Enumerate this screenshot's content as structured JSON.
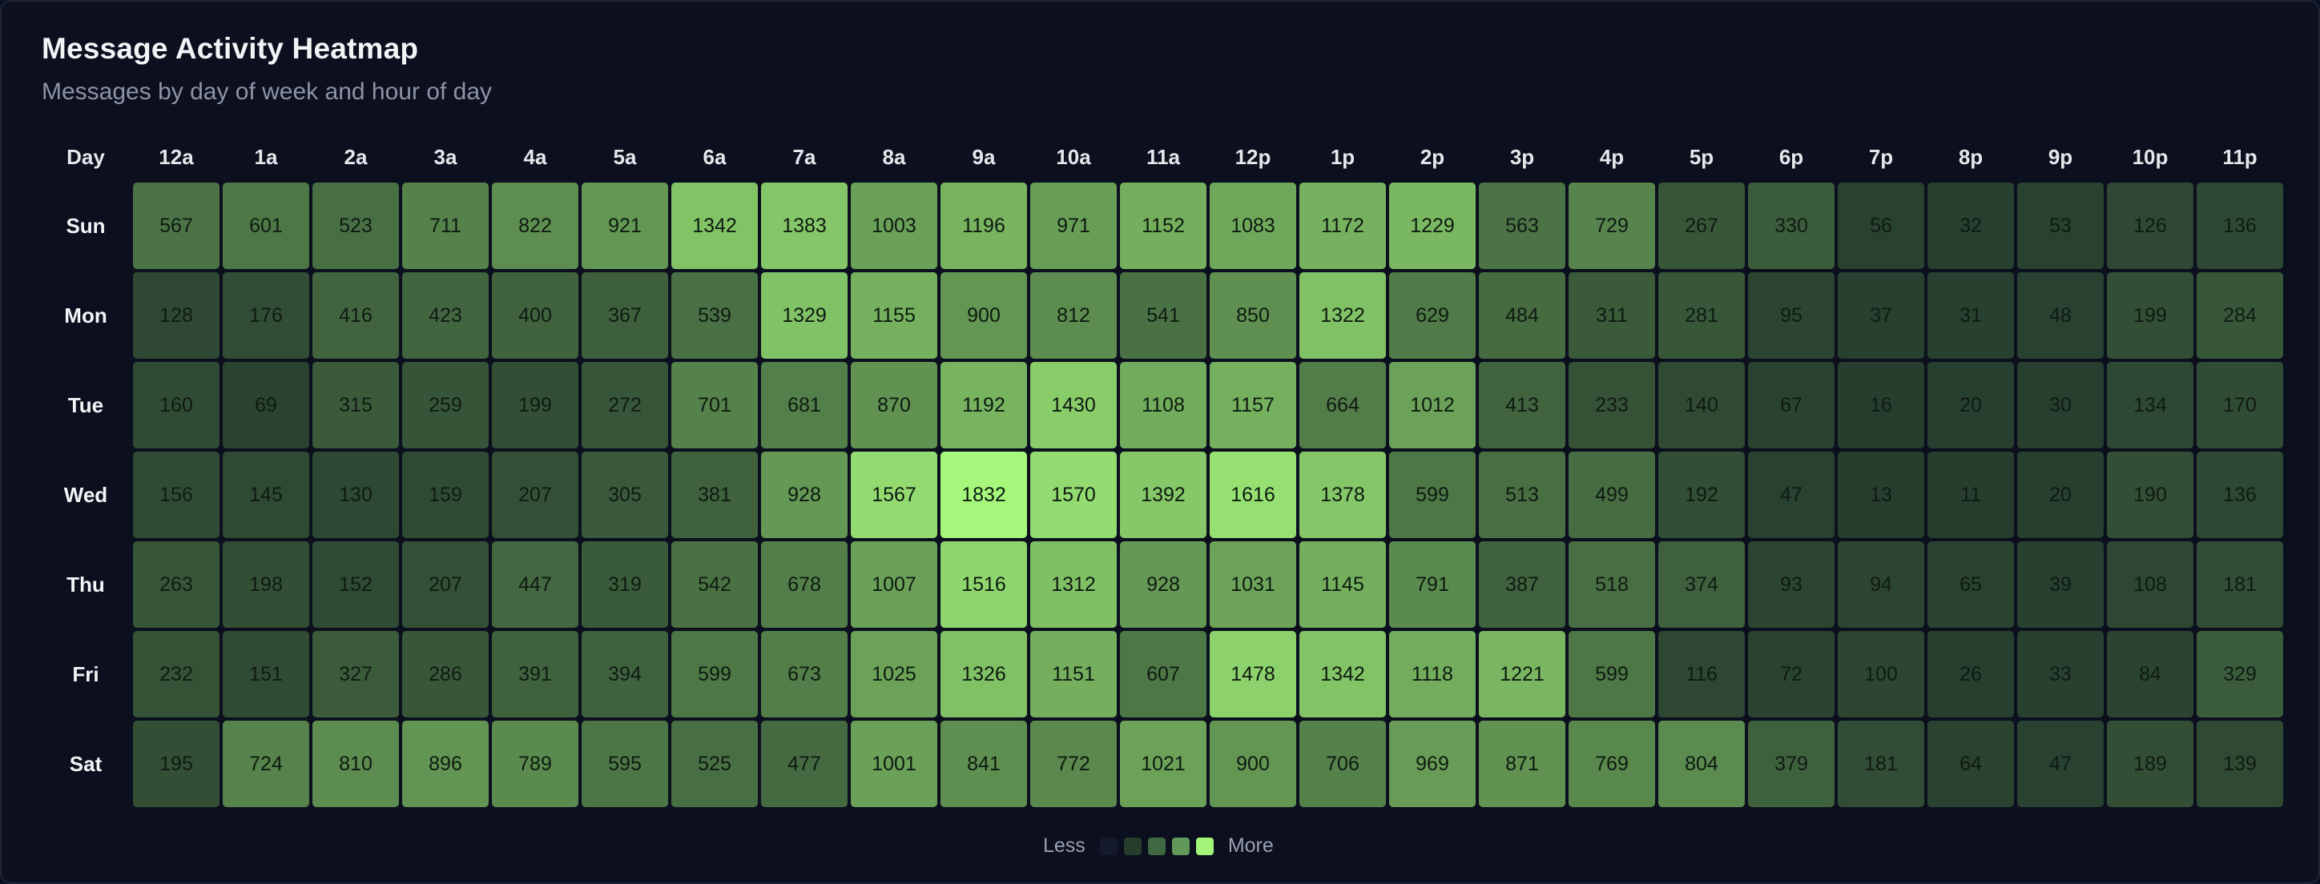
{
  "header": {
    "title": "Message Activity Heatmap",
    "subtitle": "Messages by day of week and hour of day"
  },
  "legend": {
    "less_label": "Less",
    "more_label": "More",
    "colors": [
      "#141a2b",
      "#263d2e",
      "#3f6842",
      "#62985a",
      "#a4f47a"
    ]
  },
  "chart_data": {
    "type": "heatmap",
    "title": "Message Activity Heatmap",
    "subtitle": "Messages by day of week and hour of day",
    "corner_label": "Day",
    "x_categories": [
      "12a",
      "1a",
      "2a",
      "3a",
      "4a",
      "5a",
      "6a",
      "7a",
      "8a",
      "9a",
      "10a",
      "11a",
      "12p",
      "1p",
      "2p",
      "3p",
      "4p",
      "5p",
      "6p",
      "7p",
      "8p",
      "9p",
      "10p",
      "11p"
    ],
    "y_categories": [
      "Sun",
      "Mon",
      "Tue",
      "Wed",
      "Thu",
      "Fri",
      "Sat"
    ],
    "values": [
      [
        567,
        601,
        523,
        711,
        822,
        921,
        1342,
        1383,
        1003,
        1196,
        971,
        1152,
        1083,
        1172,
        1229,
        563,
        729,
        267,
        330,
        56,
        32,
        53,
        126,
        136
      ],
      [
        128,
        176,
        416,
        423,
        400,
        367,
        539,
        1329,
        1155,
        900,
        812,
        541,
        850,
        1322,
        629,
        484,
        311,
        281,
        95,
        37,
        31,
        48,
        199,
        284
      ],
      [
        160,
        69,
        315,
        259,
        199,
        272,
        701,
        681,
        870,
        1192,
        1430,
        1108,
        1157,
        664,
        1012,
        413,
        233,
        140,
        67,
        16,
        20,
        30,
        134,
        170
      ],
      [
        156,
        145,
        130,
        159,
        207,
        305,
        381,
        928,
        1567,
        1832,
        1570,
        1392,
        1616,
        1378,
        599,
        513,
        499,
        192,
        47,
        13,
        11,
        20,
        190,
        136
      ],
      [
        263,
        198,
        152,
        207,
        447,
        319,
        542,
        678,
        1007,
        1516,
        1312,
        928,
        1031,
        1145,
        791,
        387,
        518,
        374,
        93,
        94,
        65,
        39,
        108,
        181
      ],
      [
        232,
        151,
        327,
        286,
        391,
        394,
        599,
        673,
        1025,
        1326,
        1151,
        607,
        1478,
        1342,
        1118,
        1221,
        599,
        116,
        72,
        100,
        26,
        33,
        84,
        329
      ],
      [
        195,
        724,
        810,
        896,
        789,
        595,
        525,
        477,
        1001,
        841,
        772,
        1021,
        900,
        706,
        969,
        871,
        769,
        804,
        379,
        181,
        64,
        47,
        189,
        139
      ]
    ],
    "color_scale": {
      "low": "#263d2e",
      "high": "#a6f77c",
      "min": 0,
      "max": 1832
    },
    "legend": "bottom-center"
  }
}
